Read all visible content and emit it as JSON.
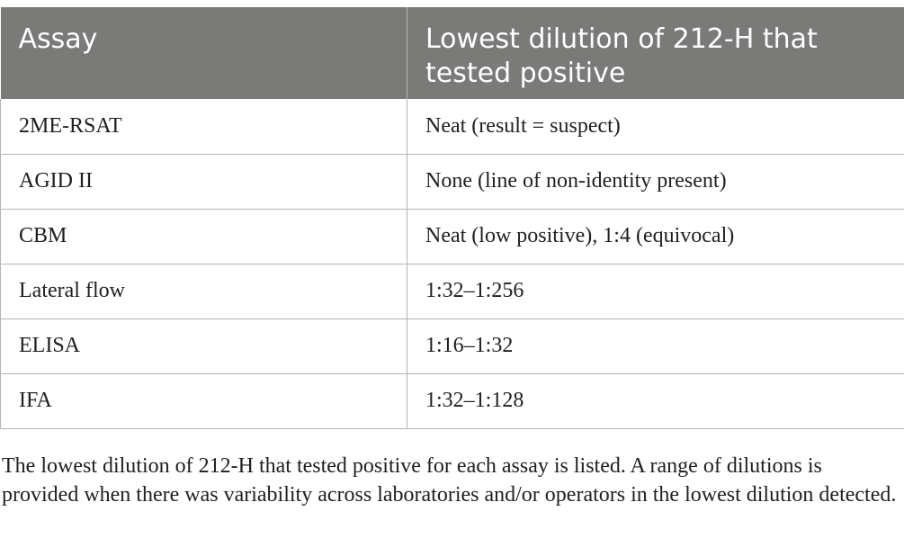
{
  "table": {
    "headers": [
      "Assay",
      "Lowest dilution of 212-H that tested positive"
    ],
    "rows": [
      [
        "2ME-RSAT",
        "Neat (result = suspect)"
      ],
      [
        "AGID II",
        "None (line of non-identity present)"
      ],
      [
        "CBM",
        "Neat (low positive), 1:4 (equivocal)"
      ],
      [
        "Lateral flow",
        "1:32–1:256"
      ],
      [
        "ELISA",
        "1:16–1:32"
      ],
      [
        "IFA",
        "1:32–1:128"
      ]
    ]
  },
  "footnote": "The lowest dilution of 212-H that tested positive for each assay is listed. A range of dilutions is provided when there was variability across laboratories and/or operators in the lowest dilution detected.",
  "colors": {
    "header_bg": "#7a7a78",
    "header_text": "#ffffff",
    "border": "#b5b5b5"
  }
}
